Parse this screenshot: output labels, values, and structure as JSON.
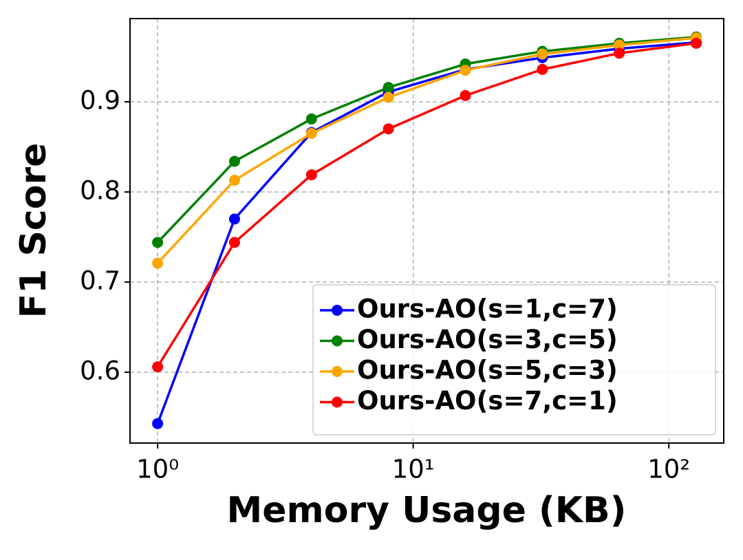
{
  "chart_data": {
    "type": "line",
    "x_label": "Memory Usage (KB)",
    "y_label": "F1 Score",
    "x": [
      1,
      2,
      4,
      8,
      16,
      32,
      64,
      128
    ],
    "x_scale": "log",
    "series": [
      {
        "name": "Ours-AO(s=1,c=7)",
        "color": "#0000ff",
        "values": [
          0.543,
          0.77,
          0.866,
          0.911,
          0.936,
          0.949,
          0.959,
          0.966
        ]
      },
      {
        "name": "Ours-AO(s=3,c=5)",
        "color": "#008000",
        "values": [
          0.744,
          0.834,
          0.881,
          0.916,
          0.942,
          0.956,
          0.965,
          0.972
        ]
      },
      {
        "name": "Ours-AO(s=5,c=3)",
        "color": "#ffa500",
        "values": [
          0.721,
          0.813,
          0.865,
          0.905,
          0.935,
          0.953,
          0.963,
          0.971
        ]
      },
      {
        "name": "Ours-AO(s=7,c=1)",
        "color": "#ff0000",
        "values": [
          0.606,
          0.744,
          0.819,
          0.87,
          0.907,
          0.936,
          0.954,
          0.965
        ]
      }
    ],
    "xlim": [
      0.78,
      164
    ],
    "ylim": [
      0.5214,
      0.9924
    ],
    "xticks": [
      {
        "value": 1,
        "label": "10⁰"
      },
      {
        "value": 10,
        "label": "10¹"
      },
      {
        "value": 100,
        "label": "10²"
      }
    ],
    "yticks": [
      0.6,
      0.7,
      0.8,
      0.9
    ],
    "grid": true,
    "legend": "lower right"
  }
}
